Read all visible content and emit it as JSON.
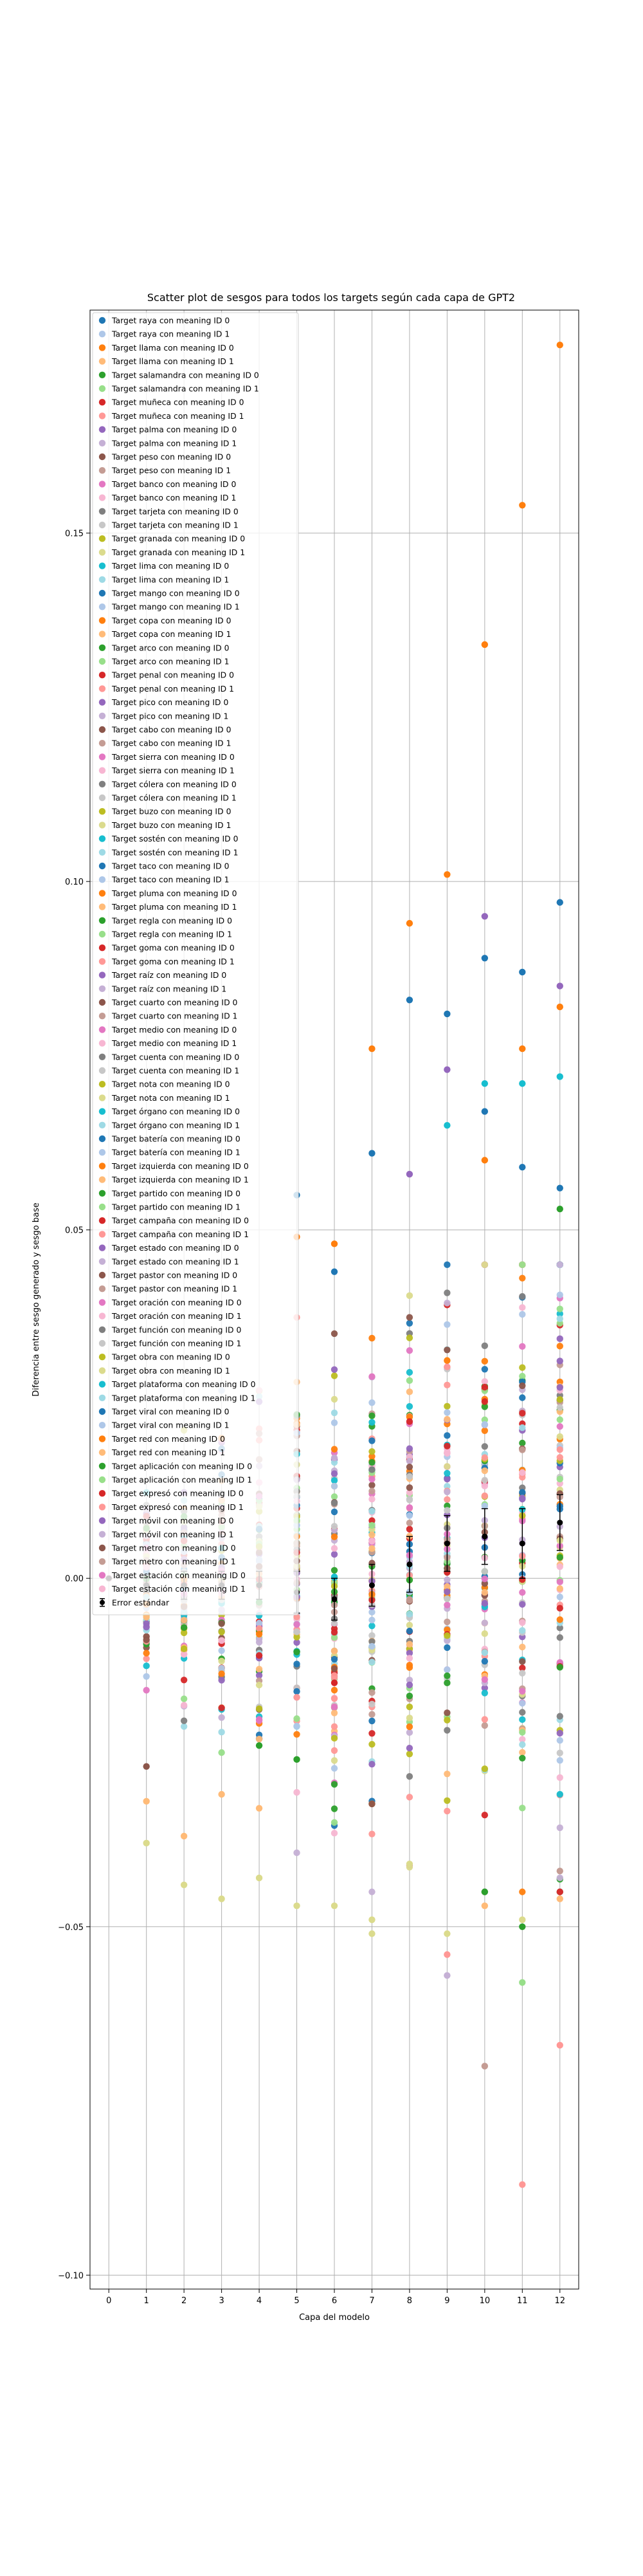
{
  "chart_data": {
    "type": "scatter",
    "title": "Scatter plot de sesgos para todos los targets según cada capa de GPT2",
    "xlabel": "Capa del modelo",
    "ylabel": "Diferencia entre sesgo generado y sesgo base",
    "x_ticks": [
      0,
      1,
      2,
      3,
      4,
      5,
      6,
      7,
      8,
      9,
      10,
      11,
      12
    ],
    "y_ticks": [
      -0.1,
      -0.05,
      0.0,
      0.05,
      0.1,
      0.15
    ],
    "y_tick_labels": [
      "−0.10",
      "−0.05",
      "0.00",
      "0.05",
      "0.10",
      "0.15"
    ],
    "xlim": [
      -0.5,
      12.5
    ],
    "ylim": [
      -0.102,
      0.182
    ],
    "grid": true,
    "legend_location": "upper-left",
    "palette": [
      "#1f77b4",
      "#aec7e8",
      "#ff7f0e",
      "#ffbb78",
      "#2ca02c",
      "#98df8a",
      "#d62728",
      "#ff9896",
      "#9467bd",
      "#c5b0d5",
      "#8c564b",
      "#c49c94",
      "#e377c2",
      "#f7b6d2",
      "#7f7f7f",
      "#c7c7c7",
      "#bcbd22",
      "#dbdb8d",
      "#17becf",
      "#9edae5"
    ],
    "series_names": [
      "Target raya con meaning ID 0",
      "Target raya con meaning ID 1",
      "Target llama con meaning ID 0",
      "Target llama con meaning ID 1",
      "Target salamandra con meaning ID 0",
      "Target salamandra con meaning ID 1",
      "Target muñeca con meaning ID 0",
      "Target muñeca con meaning ID 1",
      "Target palma con meaning ID 0",
      "Target palma con meaning ID 1",
      "Target peso con meaning ID 0",
      "Target peso con meaning ID 1",
      "Target banco con meaning ID 0",
      "Target banco con meaning ID 1",
      "Target tarjeta con meaning ID 0",
      "Target tarjeta con meaning ID 1",
      "Target granada con meaning ID 0",
      "Target granada con meaning ID 1",
      "Target lima con meaning ID 0",
      "Target lima con meaning ID 1",
      "Target mango con meaning ID 0",
      "Target mango con meaning ID 1",
      "Target copa con meaning ID 0",
      "Target copa con meaning ID 1",
      "Target arco con meaning ID 0",
      "Target arco con meaning ID 1",
      "Target penal con meaning ID 0",
      "Target penal con meaning ID 1",
      "Target pico con meaning ID 0",
      "Target pico con meaning ID 1",
      "Target cabo con meaning ID 0",
      "Target cabo con meaning ID 1",
      "Target sierra con meaning ID 0",
      "Target sierra con meaning ID 1",
      "Target cólera con meaning ID 0",
      "Target cólera con meaning ID 1",
      "Target buzo con meaning ID 0",
      "Target buzo con meaning ID 1",
      "Target sostén con meaning ID 0",
      "Target sostén con meaning ID 1",
      "Target taco con meaning ID 0",
      "Target taco con meaning ID 1",
      "Target pluma con meaning ID 0",
      "Target pluma con meaning ID 1",
      "Target regla con meaning ID 0",
      "Target regla con meaning ID 1",
      "Target goma con meaning ID 0",
      "Target goma con meaning ID 1",
      "Target raíz con meaning ID 0",
      "Target raíz con meaning ID 1",
      "Target cuarto con meaning ID 0",
      "Target cuarto con meaning ID 1",
      "Target medio con meaning ID 0",
      "Target medio con meaning ID 1",
      "Target cuenta con meaning ID 0",
      "Target cuenta con meaning ID 1",
      "Target nota con meaning ID 0",
      "Target nota con meaning ID 1",
      "Target órgano con meaning ID 0",
      "Target órgano con meaning ID 1",
      "Target batería con meaning ID 0",
      "Target batería con meaning ID 1",
      "Target izquierda con meaning ID 0",
      "Target izquierda con meaning ID 1",
      "Target partido con meaning ID 0",
      "Target partido con meaning ID 1",
      "Target campaña con meaning ID 0",
      "Target campaña con meaning ID 1",
      "Target estado con meaning ID 0",
      "Target estado con meaning ID 1",
      "Target pastor con meaning ID 0",
      "Target pastor con meaning ID 1",
      "Target oración con meaning ID 0",
      "Target oración con meaning ID 1",
      "Target función con meaning ID 0",
      "Target función con meaning ID 1",
      "Target obra con meaning ID 0",
      "Target obra con meaning ID 1",
      "Target plataforma con meaning ID 0",
      "Target plataforma con meaning ID 1",
      "Target viral con meaning ID 0",
      "Target viral con meaning ID 1",
      "Target red con meaning ID 0",
      "Target red con meaning ID 1",
      "Target aplicación con meaning ID 0",
      "Target aplicación con meaning ID 1",
      "Target expresó con meaning ID 0",
      "Target expresó con meaning ID 1",
      "Target móvil con meaning ID 0",
      "Target móvil con meaning ID 1",
      "Target metro con meaning ID 0",
      "Target metro con meaning ID 1",
      "Target estación con meaning ID 0",
      "Target estación con meaning ID 1"
    ],
    "error_series": {
      "name": "Error estándar",
      "color": "#000000",
      "x": [
        0,
        1,
        2,
        3,
        4,
        5,
        6,
        7,
        8,
        9,
        10,
        11,
        12
      ],
      "mean": [
        0.0,
        -0.001,
        -0.001,
        -0.001,
        -0.001,
        -0.002,
        -0.003,
        -0.001,
        0.002,
        0.005,
        0.006,
        0.005,
        0.008
      ],
      "err": [
        0.0,
        0.001,
        0.002,
        0.002,
        0.002,
        0.003,
        0.003,
        0.003,
        0.004,
        0.004,
        0.004,
        0.005,
        0.004
      ]
    },
    "highlight_points": [
      {
        "x": 12,
        "y": 0.177,
        "series": "Target llama con meaning ID 0"
      },
      {
        "x": 11,
        "y": 0.154,
        "series": "Target llama con meaning ID 0"
      },
      {
        "x": 10,
        "y": 0.134,
        "series": "Target llama con meaning ID 0"
      },
      {
        "x": 9,
        "y": 0.101,
        "series": "Target llama con meaning ID 0"
      },
      {
        "x": 8,
        "y": 0.094,
        "series": "Target llama con meaning ID 0"
      },
      {
        "x": 7,
        "y": 0.076,
        "series": "Target llama con meaning ID 0"
      },
      {
        "x": 6,
        "y": 0.048,
        "series": "Target llama con meaning ID 0"
      },
      {
        "x": 5,
        "y": 0.049,
        "series": "Target llama con meaning ID 0"
      },
      {
        "x": 12,
        "y": 0.097,
        "series": "Target raya con meaning ID 0"
      },
      {
        "x": 10,
        "y": 0.089,
        "series": "Target raya con meaning ID 0"
      },
      {
        "x": 11,
        "y": 0.087,
        "series": "Target raya con meaning ID 0"
      },
      {
        "x": 8,
        "y": 0.083,
        "series": "Target raya con meaning ID 0"
      },
      {
        "x": 9,
        "y": 0.081,
        "series": "Target raya con meaning ID 0"
      },
      {
        "x": 7,
        "y": 0.061,
        "series": "Target raya con meaning ID 0"
      },
      {
        "x": 5,
        "y": 0.055,
        "series": "Target raya con meaning ID 0"
      },
      {
        "x": 6,
        "y": 0.044,
        "series": "Target raya con meaning ID 0"
      },
      {
        "x": 10,
        "y": 0.095,
        "series": "Target palma con meaning ID 0"
      },
      {
        "x": 12,
        "y": 0.085,
        "series": "Target palma con meaning ID 0"
      },
      {
        "x": 12,
        "y": 0.082,
        "series": "Target llama con meaning ID 0"
      },
      {
        "x": 11,
        "y": 0.076,
        "series": "Target llama con meaning ID 0"
      },
      {
        "x": 9,
        "y": 0.073,
        "series": "Target palma con meaning ID 0"
      },
      {
        "x": 12,
        "y": 0.072,
        "series": "Target lima con meaning ID 0"
      },
      {
        "x": 10,
        "y": 0.071,
        "series": "Target lima con meaning ID 0"
      },
      {
        "x": 11,
        "y": 0.071,
        "series": "Target lima con meaning ID 0"
      },
      {
        "x": 10,
        "y": 0.067,
        "series": "Target raya con meaning ID 0"
      },
      {
        "x": 9,
        "y": 0.065,
        "series": "Target lima con meaning ID 0"
      },
      {
        "x": 10,
        "y": 0.06,
        "series": "Target llama con meaning ID 0"
      },
      {
        "x": 11,
        "y": 0.059,
        "series": "Target raya con meaning ID 0"
      },
      {
        "x": 8,
        "y": 0.058,
        "series": "Target palma con meaning ID 0"
      },
      {
        "x": 12,
        "y": 0.056,
        "series": "Target raya con meaning ID 0"
      },
      {
        "x": 12,
        "y": 0.053,
        "series": "Target salamandra con meaning ID 0"
      },
      {
        "x": 11,
        "y": -0.087,
        "series": "Target muñeca con meaning ID 1"
      },
      {
        "x": 10,
        "y": -0.07,
        "series": "Target peso con meaning ID 1"
      },
      {
        "x": 12,
        "y": -0.067,
        "series": "Target muñeca con meaning ID 1"
      },
      {
        "x": 11,
        "y": -0.058,
        "series": "Target salamandra con meaning ID 1"
      },
      {
        "x": 9,
        "y": -0.057,
        "series": "Target palma con meaning ID 1"
      },
      {
        "x": 9,
        "y": -0.054,
        "series": "Target muñeca con meaning ID 1"
      },
      {
        "x": 9,
        "y": -0.051,
        "series": "Target granada con meaning ID 1"
      },
      {
        "x": 7,
        "y": -0.051,
        "series": "Target granada con meaning ID 1"
      },
      {
        "x": 8,
        "y": -0.041,
        "series": "Target granada con meaning ID 1"
      },
      {
        "x": 11,
        "y": -0.049,
        "series": "Target granada con meaning ID 1"
      },
      {
        "x": 11,
        "y": -0.05,
        "series": "Target salamandra con meaning ID 0"
      },
      {
        "x": 7,
        "y": -0.049,
        "series": "Target granada con meaning ID 1"
      },
      {
        "x": 5,
        "y": -0.047,
        "series": "Target granada con meaning ID 1"
      },
      {
        "x": 6,
        "y": -0.047,
        "series": "Target granada con meaning ID 1"
      },
      {
        "x": 3,
        "y": -0.046,
        "series": "Target granada con meaning ID 1"
      },
      {
        "x": 4,
        "y": -0.043,
        "series": "Target granada con meaning ID 1"
      },
      {
        "x": 2,
        "y": -0.044,
        "series": "Target granada con meaning ID 1"
      },
      {
        "x": 10,
        "y": -0.045,
        "series": "Target salamandra con meaning ID 0"
      },
      {
        "x": 1,
        "y": -0.038,
        "series": "Target granada con meaning ID 1"
      },
      {
        "x": 2,
        "y": -0.037,
        "series": "Target llama con meaning ID 1"
      },
      {
        "x": 3,
        "y": -0.031,
        "series": "Target llama con meaning ID 1"
      },
      {
        "x": 4,
        "y": -0.033,
        "series": "Target llama con meaning ID 1"
      },
      {
        "x": 1,
        "y": -0.032,
        "series": "Target llama con meaning ID 1"
      },
      {
        "x": 1,
        "y": -0.027,
        "series": "Target peso con meaning ID 0"
      },
      {
        "x": 4,
        "y": -0.024,
        "series": "Target salamandra con meaning ID 0"
      },
      {
        "x": 5,
        "y": -0.026,
        "series": "Target salamandra con meaning ID 0"
      },
      {
        "x": 6,
        "y": -0.015,
        "series": "Target muñeca con meaning ID 0"
      },
      {
        "x": 10,
        "y": -0.047,
        "series": "Target llama con meaning ID 1"
      },
      {
        "x": 12,
        "y": -0.046,
        "series": "Target llama con meaning ID 1"
      },
      {
        "x": 12,
        "y": -0.042,
        "series": "Target peso con meaning ID 1"
      }
    ]
  }
}
